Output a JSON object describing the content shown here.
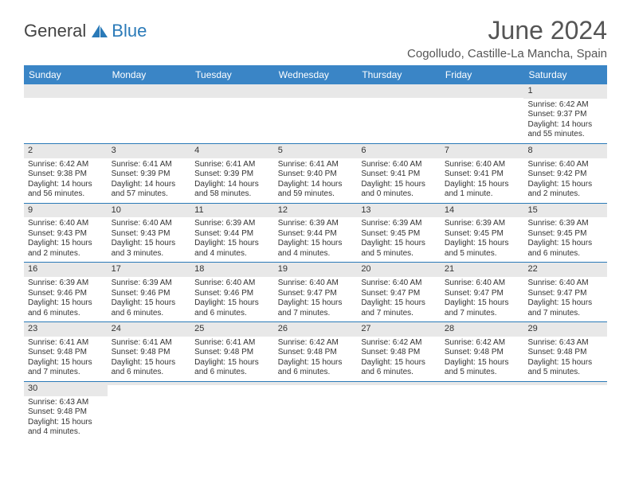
{
  "logo": {
    "text1": "General",
    "text2": "Blue"
  },
  "title": "June 2024",
  "location": "Cogolludo, Castille-La Mancha, Spain",
  "colors": {
    "header_bg": "#3a85c6",
    "header_text": "#ffffff",
    "daynum_bg": "#e8e8e8",
    "border": "#2a7ab8",
    "text": "#333333",
    "title": "#555555"
  },
  "weekdays": [
    "Sunday",
    "Monday",
    "Tuesday",
    "Wednesday",
    "Thursday",
    "Friday",
    "Saturday"
  ],
  "weeks": [
    [
      {
        "empty": true
      },
      {
        "empty": true
      },
      {
        "empty": true
      },
      {
        "empty": true
      },
      {
        "empty": true
      },
      {
        "empty": true
      },
      {
        "num": "1",
        "sunrise": "Sunrise: 6:42 AM",
        "sunset": "Sunset: 9:37 PM",
        "daylight1": "Daylight: 14 hours",
        "daylight2": "and 55 minutes."
      }
    ],
    [
      {
        "num": "2",
        "sunrise": "Sunrise: 6:42 AM",
        "sunset": "Sunset: 9:38 PM",
        "daylight1": "Daylight: 14 hours",
        "daylight2": "and 56 minutes."
      },
      {
        "num": "3",
        "sunrise": "Sunrise: 6:41 AM",
        "sunset": "Sunset: 9:39 PM",
        "daylight1": "Daylight: 14 hours",
        "daylight2": "and 57 minutes."
      },
      {
        "num": "4",
        "sunrise": "Sunrise: 6:41 AM",
        "sunset": "Sunset: 9:39 PM",
        "daylight1": "Daylight: 14 hours",
        "daylight2": "and 58 minutes."
      },
      {
        "num": "5",
        "sunrise": "Sunrise: 6:41 AM",
        "sunset": "Sunset: 9:40 PM",
        "daylight1": "Daylight: 14 hours",
        "daylight2": "and 59 minutes."
      },
      {
        "num": "6",
        "sunrise": "Sunrise: 6:40 AM",
        "sunset": "Sunset: 9:41 PM",
        "daylight1": "Daylight: 15 hours",
        "daylight2": "and 0 minutes."
      },
      {
        "num": "7",
        "sunrise": "Sunrise: 6:40 AM",
        "sunset": "Sunset: 9:41 PM",
        "daylight1": "Daylight: 15 hours",
        "daylight2": "and 1 minute."
      },
      {
        "num": "8",
        "sunrise": "Sunrise: 6:40 AM",
        "sunset": "Sunset: 9:42 PM",
        "daylight1": "Daylight: 15 hours",
        "daylight2": "and 2 minutes."
      }
    ],
    [
      {
        "num": "9",
        "sunrise": "Sunrise: 6:40 AM",
        "sunset": "Sunset: 9:43 PM",
        "daylight1": "Daylight: 15 hours",
        "daylight2": "and 2 minutes."
      },
      {
        "num": "10",
        "sunrise": "Sunrise: 6:40 AM",
        "sunset": "Sunset: 9:43 PM",
        "daylight1": "Daylight: 15 hours",
        "daylight2": "and 3 minutes."
      },
      {
        "num": "11",
        "sunrise": "Sunrise: 6:39 AM",
        "sunset": "Sunset: 9:44 PM",
        "daylight1": "Daylight: 15 hours",
        "daylight2": "and 4 minutes."
      },
      {
        "num": "12",
        "sunrise": "Sunrise: 6:39 AM",
        "sunset": "Sunset: 9:44 PM",
        "daylight1": "Daylight: 15 hours",
        "daylight2": "and 4 minutes."
      },
      {
        "num": "13",
        "sunrise": "Sunrise: 6:39 AM",
        "sunset": "Sunset: 9:45 PM",
        "daylight1": "Daylight: 15 hours",
        "daylight2": "and 5 minutes."
      },
      {
        "num": "14",
        "sunrise": "Sunrise: 6:39 AM",
        "sunset": "Sunset: 9:45 PM",
        "daylight1": "Daylight: 15 hours",
        "daylight2": "and 5 minutes."
      },
      {
        "num": "15",
        "sunrise": "Sunrise: 6:39 AM",
        "sunset": "Sunset: 9:45 PM",
        "daylight1": "Daylight: 15 hours",
        "daylight2": "and 6 minutes."
      }
    ],
    [
      {
        "num": "16",
        "sunrise": "Sunrise: 6:39 AM",
        "sunset": "Sunset: 9:46 PM",
        "daylight1": "Daylight: 15 hours",
        "daylight2": "and 6 minutes."
      },
      {
        "num": "17",
        "sunrise": "Sunrise: 6:39 AM",
        "sunset": "Sunset: 9:46 PM",
        "daylight1": "Daylight: 15 hours",
        "daylight2": "and 6 minutes."
      },
      {
        "num": "18",
        "sunrise": "Sunrise: 6:40 AM",
        "sunset": "Sunset: 9:46 PM",
        "daylight1": "Daylight: 15 hours",
        "daylight2": "and 6 minutes."
      },
      {
        "num": "19",
        "sunrise": "Sunrise: 6:40 AM",
        "sunset": "Sunset: 9:47 PM",
        "daylight1": "Daylight: 15 hours",
        "daylight2": "and 7 minutes."
      },
      {
        "num": "20",
        "sunrise": "Sunrise: 6:40 AM",
        "sunset": "Sunset: 9:47 PM",
        "daylight1": "Daylight: 15 hours",
        "daylight2": "and 7 minutes."
      },
      {
        "num": "21",
        "sunrise": "Sunrise: 6:40 AM",
        "sunset": "Sunset: 9:47 PM",
        "daylight1": "Daylight: 15 hours",
        "daylight2": "and 7 minutes."
      },
      {
        "num": "22",
        "sunrise": "Sunrise: 6:40 AM",
        "sunset": "Sunset: 9:47 PM",
        "daylight1": "Daylight: 15 hours",
        "daylight2": "and 7 minutes."
      }
    ],
    [
      {
        "num": "23",
        "sunrise": "Sunrise: 6:41 AM",
        "sunset": "Sunset: 9:48 PM",
        "daylight1": "Daylight: 15 hours",
        "daylight2": "and 7 minutes."
      },
      {
        "num": "24",
        "sunrise": "Sunrise: 6:41 AM",
        "sunset": "Sunset: 9:48 PM",
        "daylight1": "Daylight: 15 hours",
        "daylight2": "and 6 minutes."
      },
      {
        "num": "25",
        "sunrise": "Sunrise: 6:41 AM",
        "sunset": "Sunset: 9:48 PM",
        "daylight1": "Daylight: 15 hours",
        "daylight2": "and 6 minutes."
      },
      {
        "num": "26",
        "sunrise": "Sunrise: 6:42 AM",
        "sunset": "Sunset: 9:48 PM",
        "daylight1": "Daylight: 15 hours",
        "daylight2": "and 6 minutes."
      },
      {
        "num": "27",
        "sunrise": "Sunrise: 6:42 AM",
        "sunset": "Sunset: 9:48 PM",
        "daylight1": "Daylight: 15 hours",
        "daylight2": "and 6 minutes."
      },
      {
        "num": "28",
        "sunrise": "Sunrise: 6:42 AM",
        "sunset": "Sunset: 9:48 PM",
        "daylight1": "Daylight: 15 hours",
        "daylight2": "and 5 minutes."
      },
      {
        "num": "29",
        "sunrise": "Sunrise: 6:43 AM",
        "sunset": "Sunset: 9:48 PM",
        "daylight1": "Daylight: 15 hours",
        "daylight2": "and 5 minutes."
      }
    ],
    [
      {
        "num": "30",
        "sunrise": "Sunrise: 6:43 AM",
        "sunset": "Sunset: 9:48 PM",
        "daylight1": "Daylight: 15 hours",
        "daylight2": "and 4 minutes."
      },
      {
        "empty": true
      },
      {
        "empty": true
      },
      {
        "empty": true
      },
      {
        "empty": true
      },
      {
        "empty": true
      },
      {
        "empty": true
      }
    ]
  ]
}
